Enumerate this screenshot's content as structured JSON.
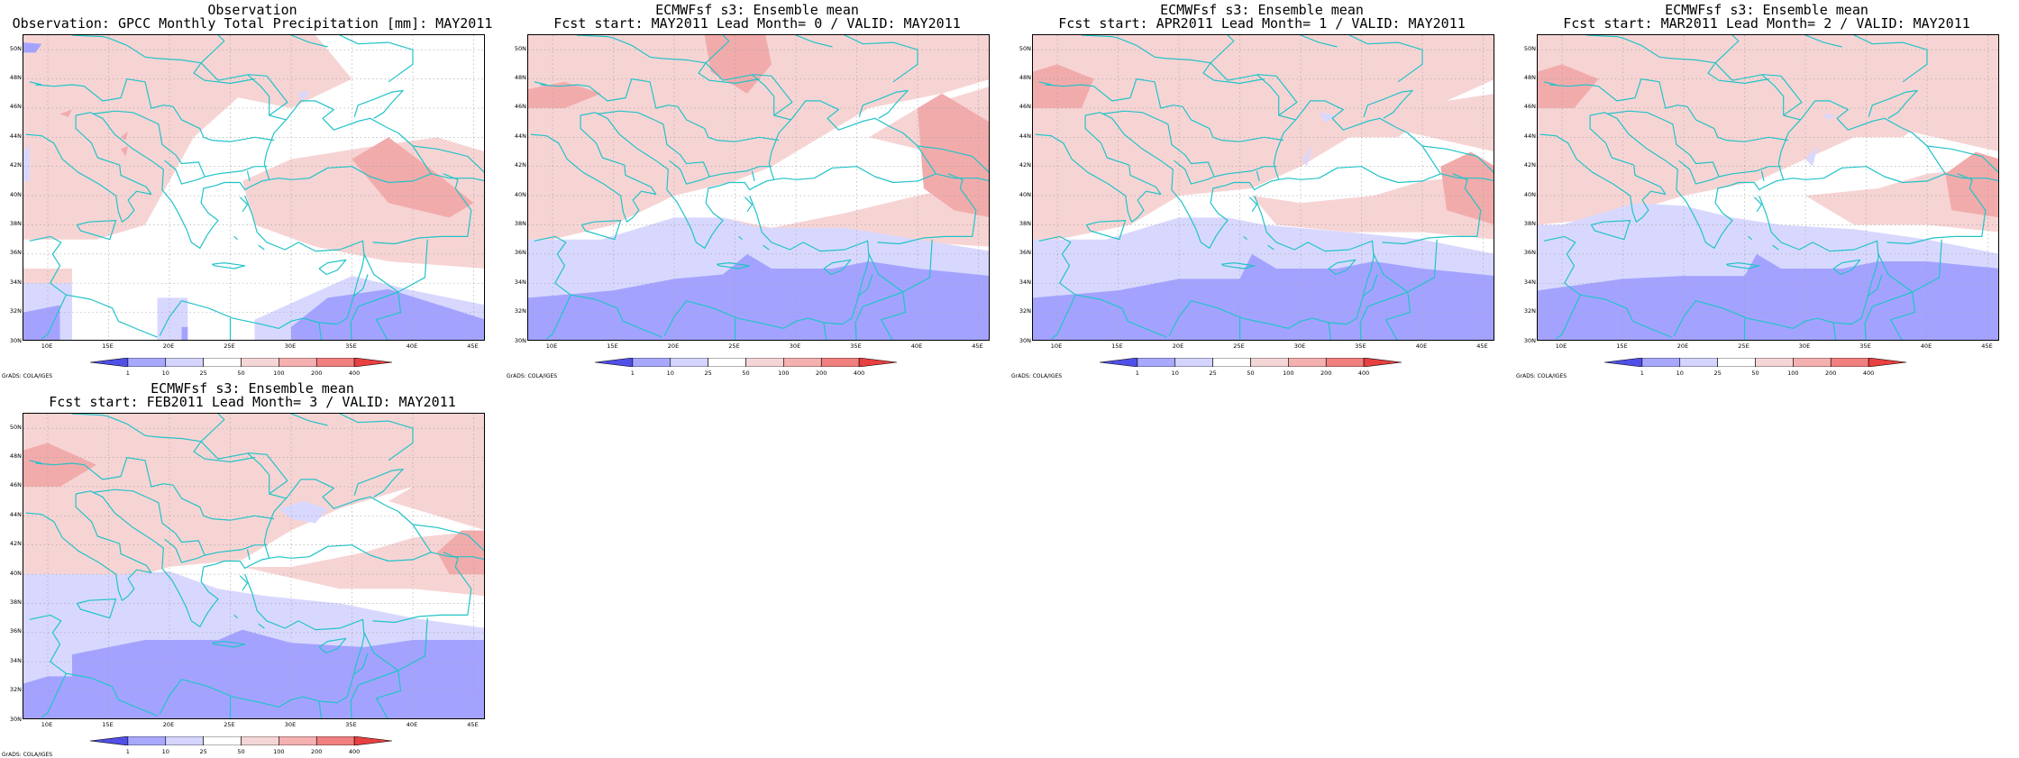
{
  "panels": [
    {
      "id": "obs",
      "title_line1": "Observation",
      "title_line2": "Observation: GPCC Monthly Total Precipitation [mm]: MAY2011"
    },
    {
      "id": "lead0",
      "title_line1": "ECMWFsf s3: Ensemble mean",
      "title_line2": "Fcst start: MAY2011  Lead Month= 0 / VALID: MAY2011"
    },
    {
      "id": "lead1",
      "title_line1": "ECMWFsf s3: Ensemble mean",
      "title_line2": "Fcst start: APR2011  Lead Month= 1 / VALID: MAY2011"
    },
    {
      "id": "lead2",
      "title_line1": "ECMWFsf s3: Ensemble mean",
      "title_line2": "Fcst start: MAR2011  Lead Month= 2 / VALID: MAY2011"
    },
    {
      "id": "lead3",
      "title_line1": "ECMWFsf s3: Ensemble mean",
      "title_line2": "Fcst start: FEB2011  Lead Month= 3 / VALID: MAY2011"
    }
  ],
  "lat_labels": [
    "50N",
    "48N",
    "46N",
    "44N",
    "42N",
    "40N",
    "38N",
    "36N",
    "34N",
    "32N",
    "30N"
  ],
  "lon_labels": [
    "10E",
    "15E",
    "20E",
    "25E",
    "30E",
    "35E",
    "40E",
    "45E"
  ],
  "colorbar": {
    "levels": [
      "1",
      "10",
      "25",
      "50",
      "100",
      "200",
      "400"
    ],
    "colors": [
      "#5050e8",
      "#a8a8ff",
      "#d4d4ff",
      "#ffffff",
      "#f5d6d6",
      "#f5b0b0",
      "#f08080",
      "#e84040"
    ]
  },
  "credit": "GrADS: COLA/IGES",
  "map_colors": {
    "coastline": "#22c3c8",
    "grid": "#a0a0a0",
    "dry_heavy": "#a3a3ff",
    "dry_light": "#d8d8ff",
    "wet_light": "#f7d4d4",
    "wet_medium": "#f2abab",
    "wet_heavy": "#e88585"
  }
}
